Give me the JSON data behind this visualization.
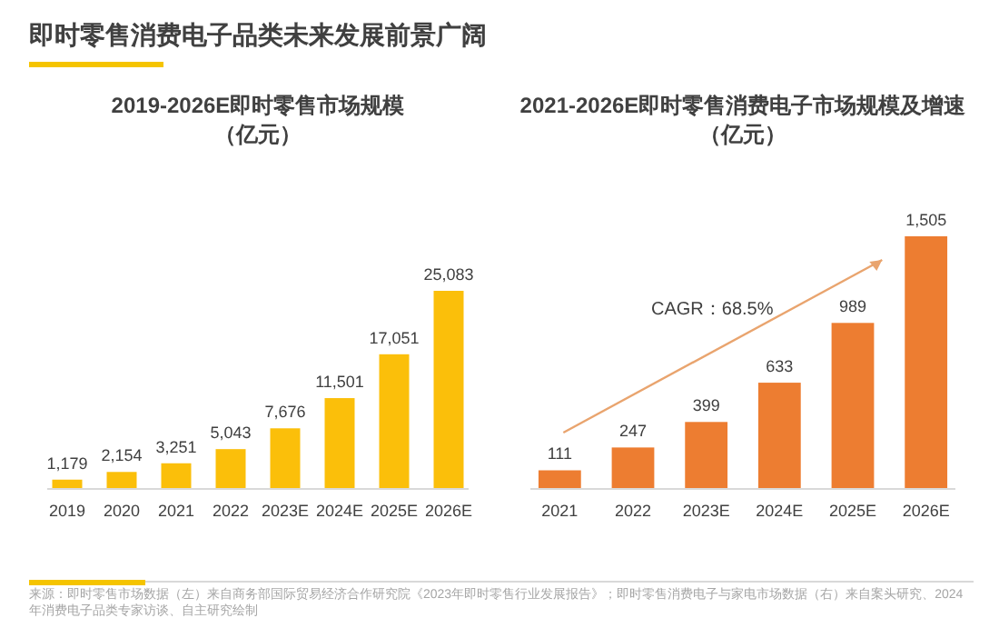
{
  "chart_data": [
    {
      "type": "bar",
      "title": "2019-2026E即时零售市场规模",
      "subtitle": "（亿元）",
      "categories": [
        "2019",
        "2020",
        "2021",
        "2022",
        "2023E",
        "2024E",
        "2025E",
        "2026E"
      ],
      "values": [
        1179,
        2154,
        3251,
        5043,
        7676,
        11501,
        17051,
        25083
      ],
      "value_labels": [
        "1,179",
        "2,154",
        "3,251",
        "5,043",
        "7,676",
        "11,501",
        "17,051",
        "25,083"
      ],
      "color": "#fbbf0a",
      "annotations": [
        "即时零售消费电子品类未来发展前景广阔",
        "来源：即时零售市场数据（左）来自商务部国际贸易经济合作研究院《2023年即时零售行业发展报告》；即时零售消费电子与家电市场数据（右）来自案头研究、2024年消费电子品类专家访谈、自主研究绘制"
      ]
    },
    {
      "type": "bar",
      "title": "2021-2026E即时零售消费电子市场规模及增速",
      "subtitle": "（亿元）",
      "categories": [
        "2021",
        "2022",
        "2023E",
        "2024E",
        "2025E",
        "2026E"
      ],
      "values": [
        111,
        247,
        399,
        633,
        989,
        1505
      ],
      "value_labels": [
        "111",
        "247",
        "399",
        "633",
        "989",
        "1,505"
      ],
      "color": "#ed7d31",
      "annotations": [
        "CAGR：68.5%"
      ]
    }
  ]
}
